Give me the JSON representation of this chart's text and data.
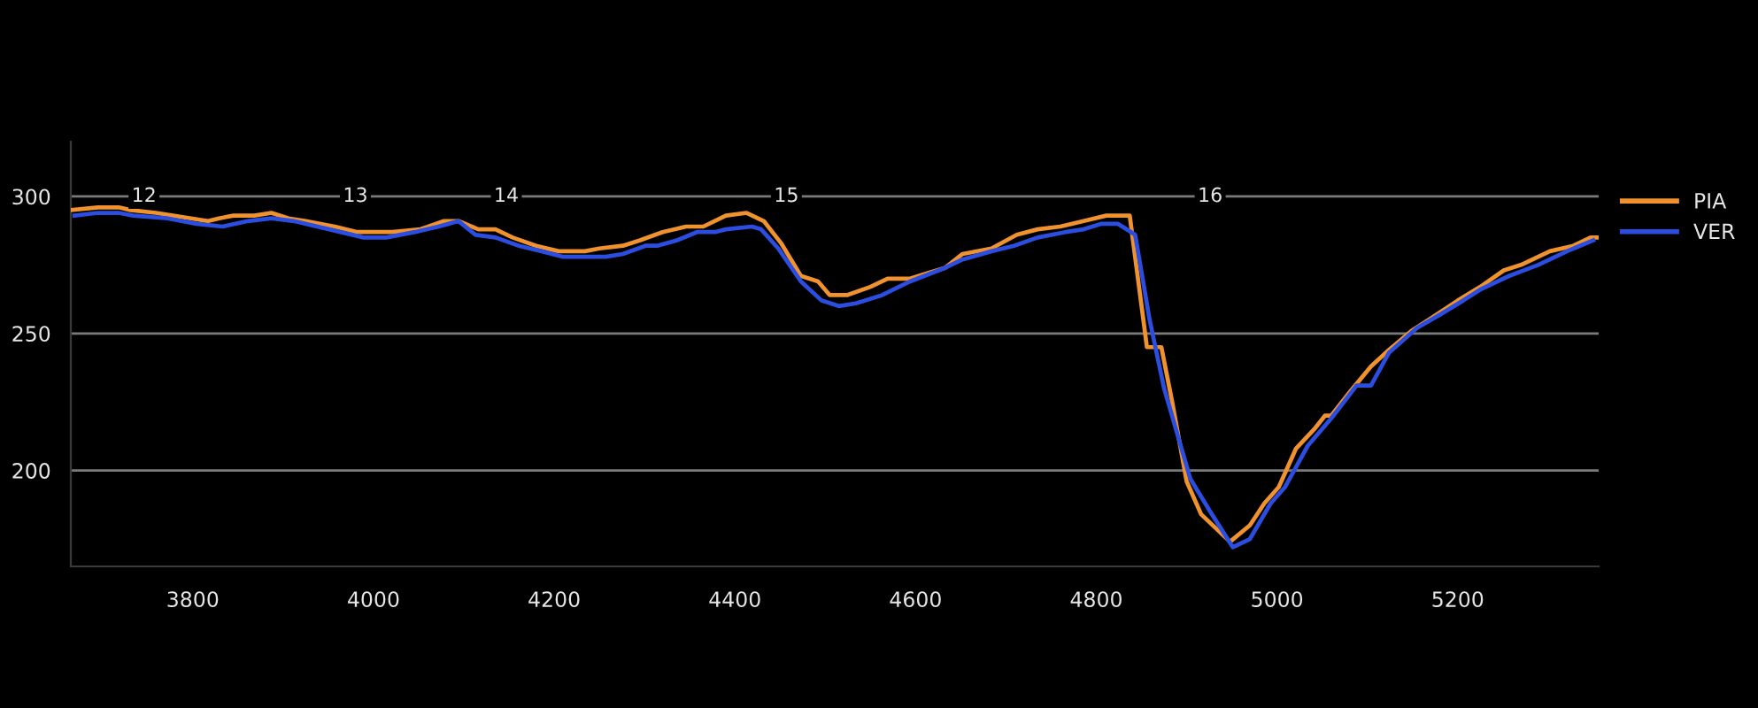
{
  "chart_data": {
    "type": "line",
    "xlim": [
      3665,
      5356
    ],
    "ylim": [
      165,
      320
    ],
    "xticks": [
      3800,
      4000,
      4200,
      4400,
      4600,
      4800,
      5000,
      5200
    ],
    "yticks": [
      200,
      250,
      300
    ],
    "grid": "y",
    "legend": "top right",
    "annotations": [
      {
        "text": "12",
        "x": 3746,
        "y": 300
      },
      {
        "text": "13",
        "x": 3980,
        "y": 300
      },
      {
        "text": "14",
        "x": 4147,
        "y": 300
      },
      {
        "text": "15",
        "x": 4457,
        "y": 300
      },
      {
        "text": "16",
        "x": 4926,
        "y": 300
      }
    ],
    "series": [
      {
        "name": "PIA",
        "color": "#f0922e",
        "x": [
          3665,
          3695,
          3718,
          3731,
          3759,
          3778,
          3798,
          3817,
          3829,
          3845,
          3868,
          3887,
          3906,
          3925,
          3957,
          3982,
          4021,
          4052,
          4078,
          4094,
          4116,
          4135,
          4154,
          4180,
          4205,
          4234,
          4250,
          4276,
          4295,
          4320,
          4346,
          4365,
          4390,
          4413,
          4432,
          4451,
          4473,
          4492,
          4505,
          4524,
          4550,
          4569,
          4594,
          4613,
          4633,
          4652,
          4684,
          4712,
          4735,
          4760,
          4786,
          4811,
          4837,
          4856,
          4872,
          4884,
          4900,
          4916,
          4948,
          4970,
          4986,
          5002,
          5021,
          5041,
          5053,
          5060,
          5079,
          5104,
          5124,
          5149,
          5168,
          5200,
          5225,
          5251,
          5270,
          5302,
          5328,
          5347,
          5356
        ],
        "values": [
          295,
          296,
          296,
          295,
          294,
          293,
          292,
          291,
          292,
          293,
          293,
          294,
          292,
          291,
          289,
          287,
          287,
          288,
          291,
          291,
          288,
          288,
          285,
          282,
          280,
          280,
          281,
          282,
          284,
          287,
          289,
          289,
          293,
          294,
          291,
          283,
          271,
          269,
          264,
          264,
          267,
          270,
          270,
          272,
          274,
          279,
          281,
          286,
          288,
          289,
          291,
          293,
          293,
          245,
          245,
          225,
          196,
          184,
          174,
          180,
          188,
          194,
          208,
          215,
          220,
          220,
          228,
          238,
          244,
          251,
          255,
          262,
          267,
          273,
          275,
          280,
          282,
          285,
          285
        ]
      },
      {
        "name": "VER",
        "color": "#2b4de0",
        "x": [
          3669,
          3695,
          3718,
          3734,
          3772,
          3804,
          3833,
          3861,
          3887,
          3912,
          3951,
          3989,
          4014,
          4046,
          4072,
          4094,
          4113,
          4135,
          4161,
          4186,
          4209,
          4244,
          4257,
          4276,
          4301,
          4314,
          4336,
          4358,
          4378,
          4390,
          4419,
          4429,
          4448,
          4473,
          4496,
          4515,
          4534,
          4563,
          4594,
          4633,
          4652,
          4684,
          4709,
          4735,
          4766,
          4786,
          4805,
          4824,
          4843,
          4859,
          4875,
          4904,
          4926,
          4951,
          4970,
          4993,
          5009,
          5034,
          5060,
          5088,
          5104,
          5124,
          5155,
          5181,
          5206,
          5225,
          5257,
          5289,
          5321,
          5350
        ],
        "values": [
          293,
          294,
          294,
          293,
          292,
          290,
          289,
          291,
          292,
          291,
          288,
          285,
          285,
          287,
          289,
          291,
          286,
          285,
          282,
          280,
          278,
          278,
          278,
          279,
          282,
          282,
          284,
          287,
          287,
          288,
          289,
          288,
          281,
          269,
          262,
          260,
          261,
          264,
          269,
          274,
          277,
          280,
          282,
          285,
          287,
          288,
          290,
          290,
          286,
          255,
          230,
          197,
          185,
          172,
          175,
          188,
          194,
          209,
          219,
          231,
          231,
          243,
          252,
          257,
          262,
          266,
          271,
          275,
          280,
          284
        ]
      }
    ]
  }
}
